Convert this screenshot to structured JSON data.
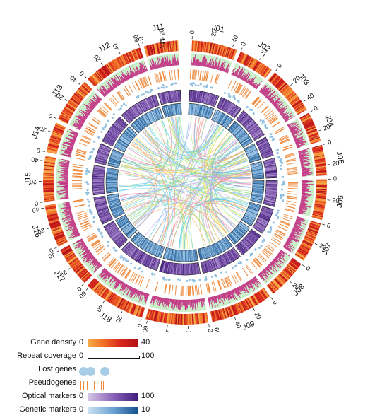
{
  "units_label": "Mb",
  "chromosomes": [
    {
      "name": "J01",
      "length": 45,
      "ticks": [
        0,
        20,
        40
      ]
    },
    {
      "name": "J02",
      "length": 35,
      "ticks": [
        0,
        20
      ]
    },
    {
      "name": "J03",
      "length": 48,
      "ticks": [
        0,
        20,
        40
      ]
    },
    {
      "name": "J04",
      "length": 30,
      "ticks": [
        0,
        20
      ]
    },
    {
      "name": "J05",
      "length": 30,
      "ticks": [
        0,
        20
      ]
    },
    {
      "name": "J06",
      "length": 40,
      "ticks": [
        0,
        20
      ]
    },
    {
      "name": "J07",
      "length": 40,
      "ticks": [
        0,
        20
      ]
    },
    {
      "name": "J08",
      "length": 40,
      "ticks": [
        0,
        20
      ]
    },
    {
      "name": "J09",
      "length": 62,
      "ticks": [
        0,
        20,
        40,
        60
      ]
    },
    {
      "name": "J10",
      "length": 62,
      "ticks": [
        0,
        20,
        40,
        60
      ]
    },
    {
      "name": "J18",
      "length": 62,
      "ticks": [
        0,
        20,
        40,
        60
      ]
    },
    {
      "name": "J17",
      "length": 40,
      "ticks": [
        0,
        20,
        40
      ]
    },
    {
      "name": "J16",
      "length": 42,
      "ticks": [
        0,
        20,
        40
      ]
    },
    {
      "name": "J15",
      "length": 45,
      "ticks": [
        0,
        20,
        40
      ]
    },
    {
      "name": "J14",
      "length": 30,
      "ticks": [
        0,
        20
      ]
    },
    {
      "name": "J13",
      "length": 45,
      "ticks": [
        0,
        20,
        40
      ]
    },
    {
      "name": "J12",
      "length": 60,
      "ticks": [
        0,
        20,
        40,
        60
      ]
    },
    {
      "name": "J11",
      "length": 34,
      "ticks": [
        0,
        20
      ]
    }
  ],
  "legend": {
    "gene_density": {
      "label": "Gene density",
      "min": "0",
      "max": "40"
    },
    "repeat_coverage": {
      "label": "Repeat coverage",
      "min": "0",
      "max": "100"
    },
    "lost_genes": {
      "label": "Lost genes"
    },
    "pseudogenes": {
      "label": "Pseudogenes"
    },
    "optical_markers": {
      "label": "Optical markers",
      "min": "0",
      "max": "100"
    },
    "genetic_markers": {
      "label": "Genetic markers",
      "min": "0",
      "max": "10"
    }
  },
  "colors": {
    "gene_density": [
      "#f7b04a",
      "#ef6a24",
      "#d8231c",
      "#b11018"
    ],
    "repeat_fill": "#c9f0c8",
    "repeat_bar": "#c4127a",
    "lost_genes": "#8fc0e0",
    "pseudogenes": "#ef8a3c",
    "optical": [
      "#d7c9e8",
      "#8a62b8",
      "#3f1a7a"
    ],
    "genetic": [
      "#cfe2f3",
      "#6aa3d4",
      "#134f8a"
    ],
    "links": [
      "#f5e94a",
      "#7fe0c4",
      "#58c8ee",
      "#f08bb6",
      "#9bd87a",
      "#c7a7e8",
      "#f6a65a",
      "#6fb3f2",
      "#b3e879",
      "#f28d8d"
    ]
  }
}
